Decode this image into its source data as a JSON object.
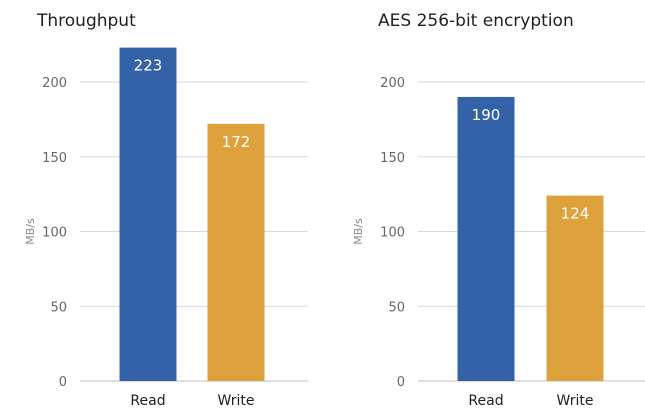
{
  "chart_data": [
    {
      "type": "bar",
      "title": "Throughput",
      "ylabel": "MB/s",
      "categories": [
        "Read",
        "Write"
      ],
      "values": [
        223,
        172
      ],
      "ylim": [
        0,
        200
      ],
      "yticks": [
        0,
        50,
        100,
        150,
        200
      ],
      "grid": true,
      "colors": [
        "#3462a8",
        "#dea23d"
      ]
    },
    {
      "type": "bar",
      "title": "AES 256-bit encryption",
      "ylabel": "MB/s",
      "categories": [
        "Read",
        "Write"
      ],
      "values": [
        190,
        124
      ],
      "ylim": [
        0,
        200
      ],
      "yticks": [
        0,
        50,
        100,
        150,
        200
      ],
      "grid": true,
      "colors": [
        "#3462a8",
        "#dea23d"
      ]
    }
  ]
}
